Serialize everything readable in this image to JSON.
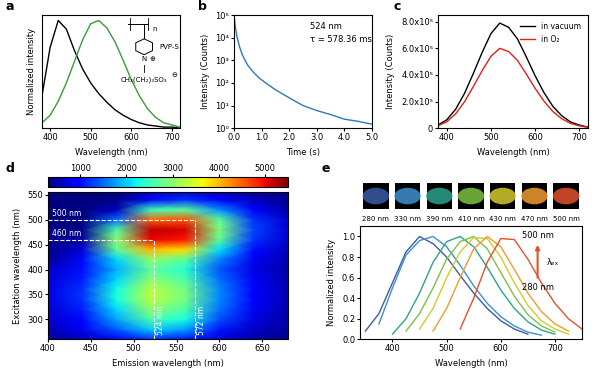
{
  "chart_data": [
    {
      "panel": "a",
      "type": "line",
      "xlabel": "Wavelength (nm)",
      "ylabel": "Normalized intensity",
      "x": [
        380,
        400,
        420,
        440,
        460,
        480,
        500,
        520,
        540,
        560,
        580,
        600,
        620,
        640,
        660,
        680,
        700,
        720
      ],
      "series": [
        {
          "color": "#000000",
          "values": [
            0.3,
            0.75,
            1.0,
            0.92,
            0.72,
            0.55,
            0.42,
            0.32,
            0.24,
            0.17,
            0.12,
            0.08,
            0.05,
            0.03,
            0.02,
            0.01,
            0.01,
            0.0
          ]
        },
        {
          "color": "#3a9a3a",
          "values": [
            0.05,
            0.12,
            0.25,
            0.42,
            0.62,
            0.82,
            0.97,
            1.0,
            0.93,
            0.8,
            0.63,
            0.45,
            0.3,
            0.18,
            0.1,
            0.05,
            0.03,
            0.01
          ]
        }
      ],
      "xlim": [
        380,
        720
      ],
      "ylim": [
        0,
        1.05
      ],
      "xticks": [
        400,
        500,
        600,
        700
      ],
      "tick_labels": "x",
      "structure": {
        "texts": [
          "n",
          "N",
          "⊕",
          "CH₂(CH₂)₃SO₃",
          "⊖"
        ],
        "label": "PVP-S"
      }
    },
    {
      "panel": "b",
      "type": "line",
      "log": "y",
      "xlabel": "Time (s)",
      "ylabel": "Intensity (Counts)",
      "annotations": [
        "524 nm",
        "τ = 578.36 ms"
      ],
      "x": [
        0,
        0.05,
        0.1,
        0.2,
        0.3,
        0.4,
        0.5,
        0.7,
        0.9,
        1.2,
        1.5,
        2.0,
        2.5,
        3.0,
        3.5,
        4.0,
        4.5,
        5.0
      ],
      "series": [
        {
          "color": "#2a7ab9",
          "values": [
            100000,
            30000,
            12000,
            4000,
            1800,
            1000,
            600,
            300,
            170,
            90,
            50,
            22,
            10,
            6,
            4,
            2.5,
            2,
            1.5
          ]
        }
      ],
      "xlim": [
        0,
        5
      ],
      "ylim": [
        1,
        100000
      ],
      "xticks": [
        {
          "value": 0,
          "label": "0.0"
        },
        {
          "value": 1,
          "label": "1.0"
        },
        {
          "value": 2,
          "label": "2.0"
        },
        {
          "value": 3,
          "label": "3.0"
        },
        {
          "value": 4,
          "label": "4.0"
        },
        {
          "value": 5,
          "label": "5.0"
        }
      ],
      "yticks": [
        {
          "value": 1,
          "label": "10⁰"
        },
        {
          "value": 10,
          "label": "10¹"
        },
        {
          "value": 100,
          "label": "10²"
        },
        {
          "value": 1000,
          "label": "10³"
        },
        {
          "value": 10000,
          "label": "10⁴"
        },
        {
          "value": 100000,
          "label": "10⁵"
        }
      ]
    },
    {
      "panel": "c",
      "type": "line",
      "legend": "upper right",
      "xlabel": "Wavelength (nm)",
      "ylabel": "Intensity (Counts)",
      "x": [
        380,
        400,
        420,
        440,
        460,
        480,
        500,
        520,
        540,
        560,
        580,
        600,
        620,
        640,
        660,
        680,
        700,
        720
      ],
      "series": [
        {
          "name": "in vacuum",
          "color": "#000000",
          "values": [
            23700,
            63200,
            142200,
            260700,
            410800,
            568800,
            711000,
            790000,
            758400,
            671500,
            537200,
            395000,
            268600,
            165900,
            94800,
            47400,
            23700,
            7900
          ]
        },
        {
          "name": "in O₂",
          "color": "#e0201b",
          "values": [
            18000,
            48000,
            108000,
            198000,
            312000,
            432000,
            540000,
            600000,
            576000,
            510000,
            408000,
            300000,
            204000,
            126000,
            72000,
            36000,
            18000,
            6000
          ]
        }
      ],
      "xlim": [
        380,
        720
      ],
      "ylim": [
        0,
        850000
      ],
      "xticks": [
        400,
        500,
        600,
        700
      ],
      "yticks": [
        0,
        {
          "value": 200000,
          "label": "2.0x10⁵"
        },
        {
          "value": 400000,
          "label": "4.0x10⁵"
        },
        {
          "value": 600000,
          "label": "6.0x10⁵"
        },
        {
          "value": 800000,
          "label": "8.0x10⁵"
        }
      ]
    },
    {
      "panel": "d",
      "type": "heatmap",
      "xlabel": "Emission wavelength (nm)",
      "ylabel": "Excitation wavelength (nm)",
      "x": [
        400,
        440,
        480,
        520,
        560,
        600,
        640,
        680
      ],
      "y": [
        260,
        280,
        300,
        320,
        340,
        360,
        380,
        400,
        420,
        440,
        460,
        480,
        500,
        520,
        540,
        560
      ],
      "z": [
        [
          440,
          570,
          890,
          1200,
          1070,
          710,
          480,
          370
        ],
        [
          560,
          810,
          1410,
          2000,
          1750,
          1070,
          640,
          440
        ],
        [
          650,
          990,
          1800,
          2600,
          2260,
          1340,
          760,
          480
        ],
        [
          710,
          1110,
          2060,
          3000,
          2600,
          1520,
          840,
          520
        ],
        [
          750,
          1200,
          2250,
          3300,
          2850,
          1650,
          900,
          540
        ],
        [
          750,
          1200,
          2250,
          3300,
          2850,
          1650,
          900,
          540
        ],
        [
          710,
          1110,
          2060,
          3000,
          2600,
          1520,
          840,
          520
        ],
        [
          660,
          1020,
          1860,
          2700,
          2340,
          1380,
          780,
          490
        ],
        [
          400,
          1000,
          2060,
          3000,
          2700,
          1600,
          840,
          520
        ],
        [
          350,
          700,
          2700,
          4000,
          3800,
          2100,
          1000,
          600
        ],
        [
          300,
          500,
          3000,
          5000,
          4900,
          2700,
          1200,
          650
        ],
        [
          300,
          350,
          2600,
          5200,
          5100,
          2900,
          1300,
          700
        ],
        [
          300,
          300,
          1500,
          4500,
          4600,
          2700,
          1200,
          650
        ],
        [
          300,
          300,
          600,
          2500,
          2700,
          1700,
          900,
          500
        ],
        [
          300,
          300,
          350,
          1000,
          1200,
          900,
          600,
          400
        ],
        [
          300,
          300,
          300,
          500,
          550,
          450,
          400,
          350
        ]
      ],
      "colorbar": {
        "lim": [
          300,
          5500
        ],
        "ticks": [
          1000,
          2000,
          3000,
          4000,
          5000
        ]
      },
      "guides": [
        {
          "label": "460 nm",
          "axis": "y",
          "value": 460,
          "end": 524
        },
        {
          "label": "500 nm",
          "axis": "y",
          "value": 500,
          "end": 572
        },
        {
          "label": "524 nm",
          "axis": "x",
          "value": 524,
          "end": 460
        },
        {
          "label": "572 nm",
          "axis": "x",
          "value": 572,
          "end": 500
        }
      ],
      "xlim": [
        400,
        680
      ],
      "ylim": [
        260,
        555
      ],
      "xticks": [
        400,
        450,
        500,
        550,
        600,
        650
      ],
      "yticks": [
        300,
        350,
        400,
        450,
        500,
        550
      ]
    },
    {
      "panel": "e",
      "type": "line",
      "xlabel": "Wavelength (nm)",
      "ylabel": "Normalized intensity",
      "annotations": [
        "500 nm",
        "λₑₓ",
        "280 nm"
      ],
      "x": [
        350,
        375,
        400,
        425,
        450,
        475,
        500,
        525,
        550,
        575,
        600,
        625,
        650,
        675,
        700,
        725,
        750
      ],
      "series": [
        {
          "name": "280 nm",
          "color": "#3b5ba5",
          "values": [
            0.08,
            0.25,
            0.55,
            0.85,
            1.0,
            0.93,
            0.8,
            0.62,
            0.45,
            0.3,
            0.18,
            0.1,
            0.05,
            null,
            null,
            null,
            null
          ]
        },
        {
          "name": "330 nm",
          "color": "#3f8fcf",
          "values": [
            null,
            0.15,
            0.5,
            0.82,
            0.96,
            1.0,
            0.9,
            0.72,
            0.52,
            0.35,
            0.22,
            0.13,
            0.07,
            0.04,
            null,
            null,
            null
          ]
        },
        {
          "name": "390 nm",
          "color": "#2aa58a",
          "values": [
            null,
            null,
            0.05,
            0.2,
            0.45,
            0.75,
            0.95,
            1.0,
            0.9,
            0.7,
            0.48,
            0.3,
            0.17,
            0.09,
            0.05,
            null,
            null
          ]
        },
        {
          "name": "410 nm",
          "color": "#7cc242",
          "values": [
            null,
            null,
            null,
            0.08,
            0.25,
            0.5,
            0.78,
            0.95,
            1.0,
            0.88,
            0.65,
            0.42,
            0.24,
            0.13,
            0.07,
            null,
            null
          ]
        },
        {
          "name": "430 nm",
          "color": "#d4c92e",
          "values": [
            null,
            null,
            null,
            null,
            0.1,
            0.3,
            0.6,
            0.85,
            0.99,
            0.98,
            0.8,
            0.55,
            0.33,
            0.18,
            0.1,
            0.05,
            null
          ]
        },
        {
          "name": "470 nm",
          "color": "#f29b30",
          "values": [
            null,
            null,
            null,
            null,
            null,
            0.08,
            0.3,
            0.6,
            0.88,
            1.0,
            0.9,
            0.68,
            0.45,
            0.27,
            0.15,
            0.08,
            null
          ]
        },
        {
          "name": "500 nm",
          "color": "#e4522b",
          "values": [
            null,
            null,
            null,
            null,
            null,
            null,
            null,
            0.1,
            0.4,
            0.75,
            0.98,
            0.97,
            0.78,
            0.55,
            0.35,
            0.2,
            0.1
          ]
        }
      ],
      "xlim": [
        340,
        750
      ],
      "ylim": [
        0,
        1.1
      ],
      "xticks": [
        400,
        500,
        600,
        700
      ],
      "yticks": [
        {
          "value": 0,
          "label": "0.0"
        },
        {
          "value": 0.2,
          "label": "0.2"
        },
        {
          "value": 0.4,
          "label": "0.4"
        },
        {
          "value": 0.6,
          "label": "0.6"
        },
        {
          "value": 0.8,
          "label": "0.8"
        },
        {
          "value": 1.0,
          "label": "1.0"
        }
      ]
    }
  ]
}
